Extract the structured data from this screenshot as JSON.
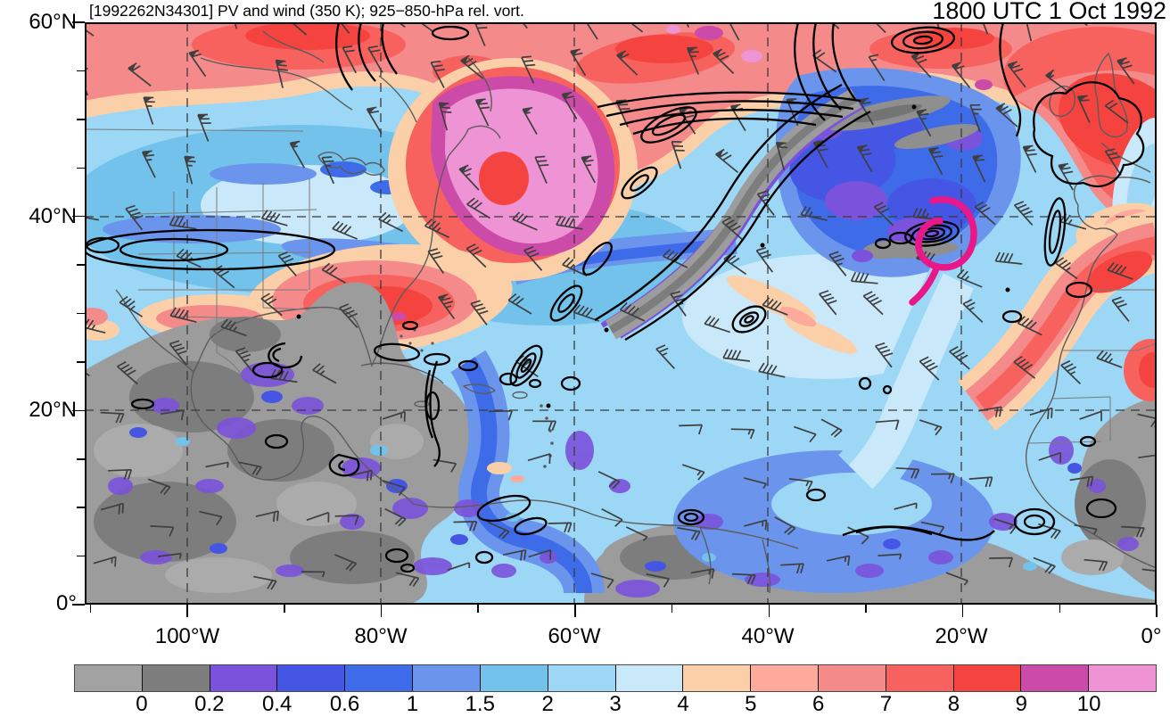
{
  "header": {
    "title": "[1992262N34301] PV and wind (350 K); 925−850-hPa rel. vort.",
    "timestamp": "1800 UTC 1 Oct 1992"
  },
  "axes": {
    "lat_ticks": [
      "60°N",
      "40°N",
      "20°N",
      "0°"
    ],
    "lon_ticks": [
      "100°W",
      "80°W",
      "60°W",
      "40°W",
      "20°W",
      "0°"
    ]
  },
  "map": {
    "cyclone_symbol_color": "#e8178a",
    "vorticity_contour_color": "#000000",
    "wind_barb_color": "#3f3f3f"
  },
  "colorbar": {
    "tick_labels": [
      "0",
      "0.2",
      "0.4",
      "0.6",
      "1",
      "1.5",
      "2",
      "3",
      "4",
      "5",
      "6",
      "7",
      "8",
      "9",
      "10"
    ],
    "segment_colors": [
      "#a2a2a2",
      "#7d7d7d",
      "#7b52db",
      "#4456e3",
      "#3e6ce8",
      "#6b95ec",
      "#72c2ec",
      "#9cd7f5",
      "#c9e8fa",
      "#fbd0a9",
      "#fdaa9d",
      "#f58a8a",
      "#f7625f",
      "#f54440",
      "#cc4aa8",
      "#ef93d4"
    ]
  }
}
